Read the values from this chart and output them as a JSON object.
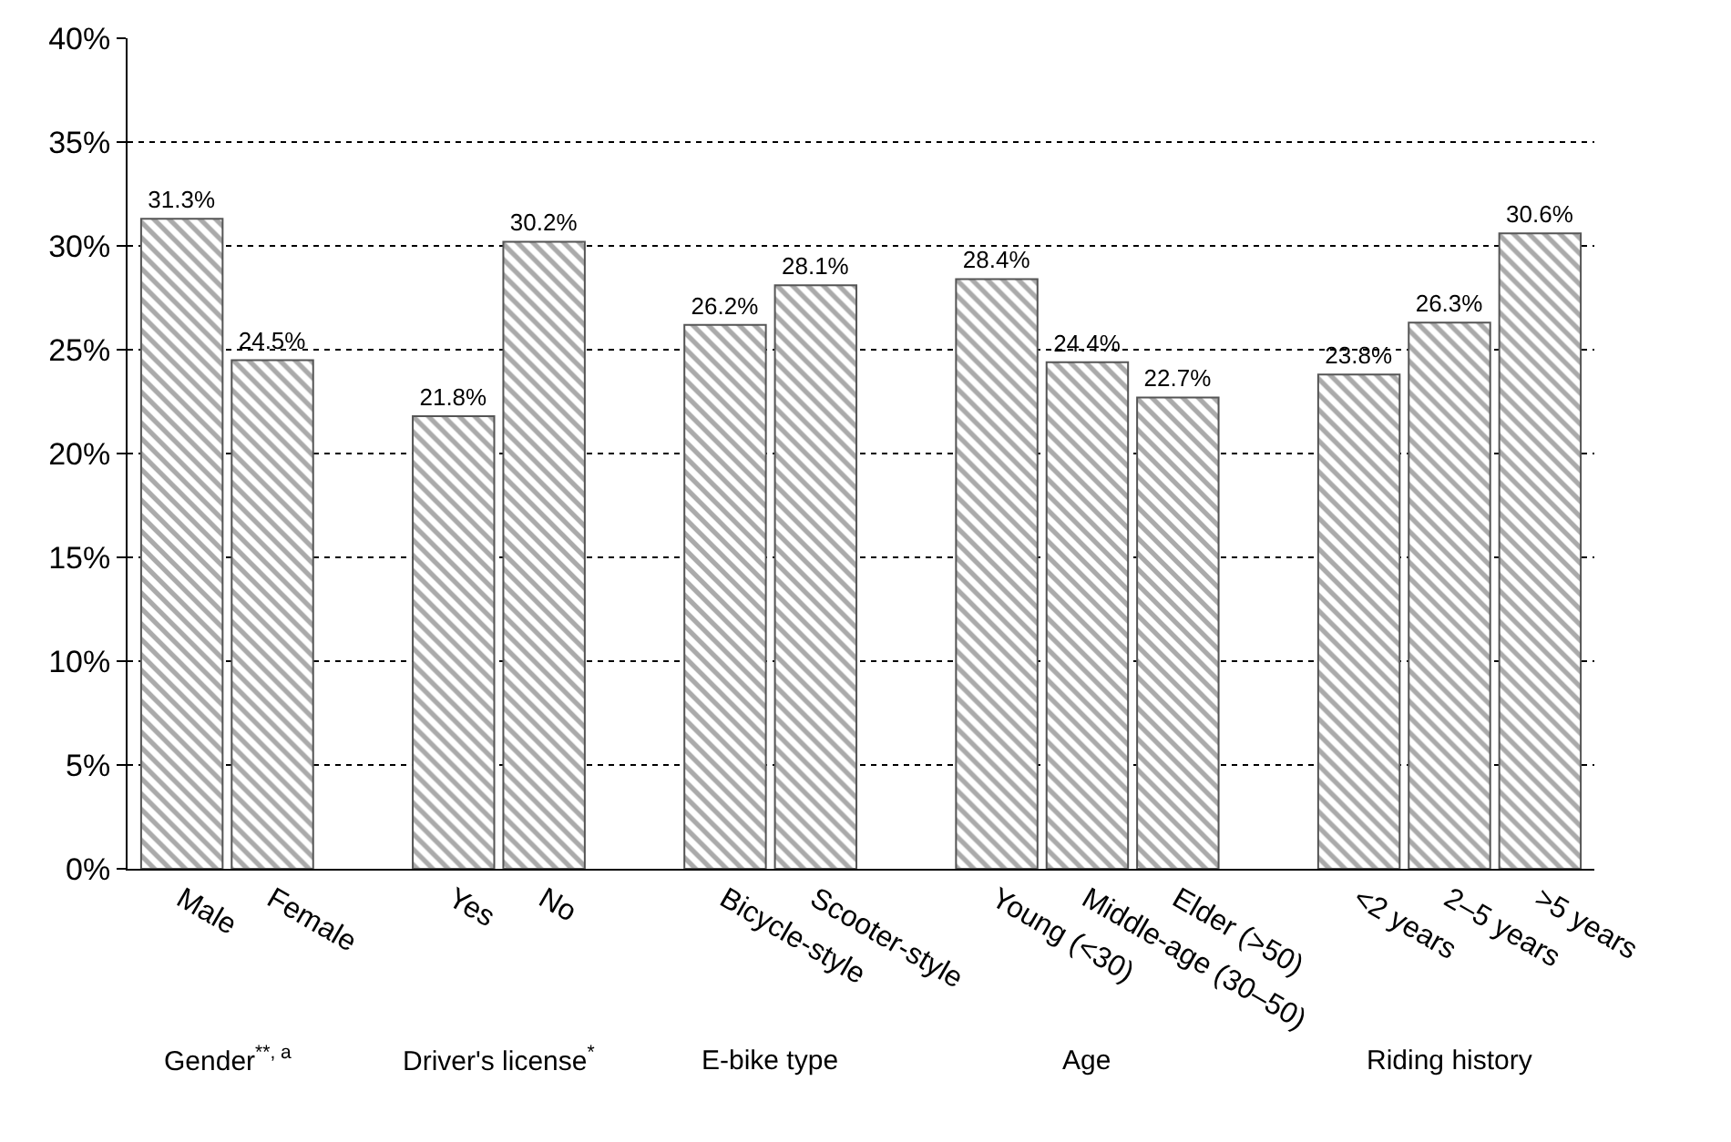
{
  "chart_data": {
    "type": "bar",
    "categories": [
      "Male",
      "Female",
      null,
      "Yes",
      "No",
      null,
      "Bicycle-style",
      "Scooter-style",
      null,
      "Young (<30)",
      "Middle-age (30–50)",
      "Elder (>50)",
      null,
      "<2 years",
      "2–5 years",
      ">5 years"
    ],
    "values": [
      31.3,
      24.5,
      null,
      21.8,
      30.2,
      null,
      26.2,
      28.1,
      null,
      28.4,
      24.4,
      22.7,
      null,
      23.8,
      26.3,
      30.6
    ],
    "value_labels": [
      "31.3%",
      "24.5%",
      null,
      "21.8%",
      "30.2%",
      null,
      "26.2%",
      "28.1%",
      null,
      "28.4%",
      "24.4%",
      "22.7%",
      null,
      "23.8%",
      "26.3%",
      "30.6%"
    ],
    "color": "#555555",
    "ylim": [
      0,
      40
    ],
    "yticks": [
      {
        "value": 0,
        "label": "0%"
      },
      {
        "value": 5,
        "label": "5%"
      },
      {
        "value": 10,
        "label": "10%"
      },
      {
        "value": 15,
        "label": "15%"
      },
      {
        "value": 20,
        "label": "20%"
      },
      {
        "value": 25,
        "label": "25%"
      },
      {
        "value": 30,
        "label": "30%"
      },
      {
        "value": 35,
        "label": "35%"
      },
      {
        "value": 40,
        "label": "40%"
      }
    ],
    "grid": "y",
    "annotations": [
      "Gender$^{**, a}$",
      "Driver's license$^{*}$",
      "E-bike type",
      "Age",
      "Riding history"
    ]
  }
}
